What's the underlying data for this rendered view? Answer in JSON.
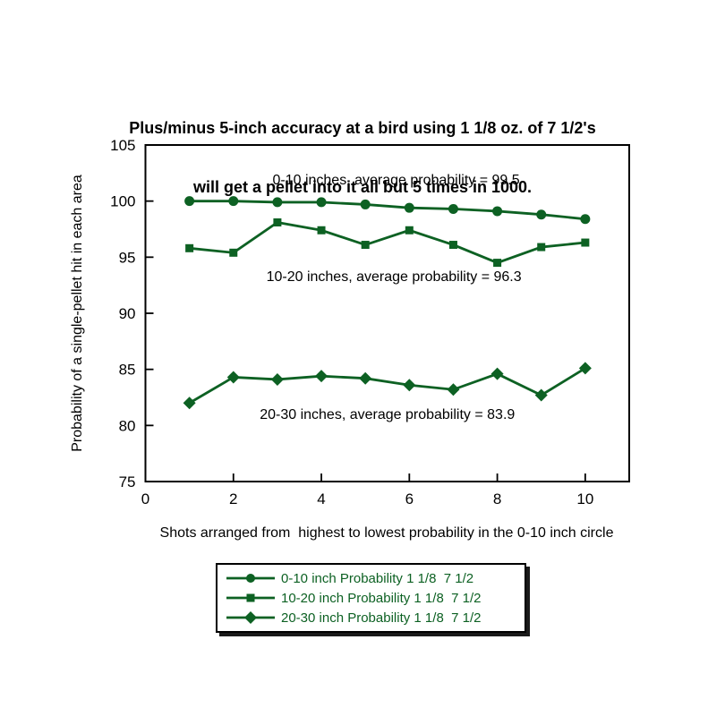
{
  "page": {
    "background": "#ffffff"
  },
  "chart_data": {
    "type": "line",
    "title_line1": "Plus/minus 5-inch accuracy at a bird using 1 1/8 oz. of 7 1/2's",
    "title_line2": "will get a pellet into it all but 5 times in 1000.",
    "xlabel": "Shots arranged from  highest to lowest probability in the 0-10 inch circle",
    "ylabel": "Probability of a single-pellet hit in each area",
    "xlim": [
      0,
      11
    ],
    "ylim": [
      75,
      105
    ],
    "x_ticks": [
      0,
      2,
      4,
      6,
      8,
      10
    ],
    "y_ticks": [
      75,
      80,
      85,
      90,
      95,
      100,
      105
    ],
    "grid": false,
    "legend_position": "bottom-center",
    "series_color": "#0d6123",
    "axis_color": "#000000",
    "x": [
      1,
      2,
      3,
      4,
      5,
      6,
      7,
      8,
      9,
      10
    ],
    "series": [
      {
        "name": "0-10 inch Probability 1 1/8  7 1/2",
        "marker": "circle",
        "values": [
          100,
          100,
          99.9,
          99.9,
          99.7,
          99.4,
          99.3,
          99.1,
          98.8,
          98.4
        ],
        "average_label": "99.5"
      },
      {
        "name": "10-20 inch Probability 1 1/8  7 1/2",
        "marker": "square",
        "values": [
          95.8,
          95.4,
          98.1,
          97.4,
          96.1,
          97.4,
          96.1,
          94.5,
          95.9,
          96.3
        ],
        "average_label": "96.3"
      },
      {
        "name": "20-30 inch Probability 1 1/8  7 1/2",
        "marker": "diamond",
        "values": [
          82.0,
          84.3,
          84.1,
          84.4,
          84.2,
          83.6,
          83.2,
          84.6,
          82.7,
          85.1
        ],
        "average_label": "83.9"
      }
    ],
    "annotations": [
      {
        "text": "0-10 inches, average probability = 99.5",
        "x": 5.7,
        "y": 101.8
      },
      {
        "text": "10-20 inches, average probability = 96.3",
        "x": 5.65,
        "y": 93.2
      },
      {
        "text": "20-30 inches, average probability = 83.9",
        "x": 5.5,
        "y": 80.9
      }
    ]
  }
}
